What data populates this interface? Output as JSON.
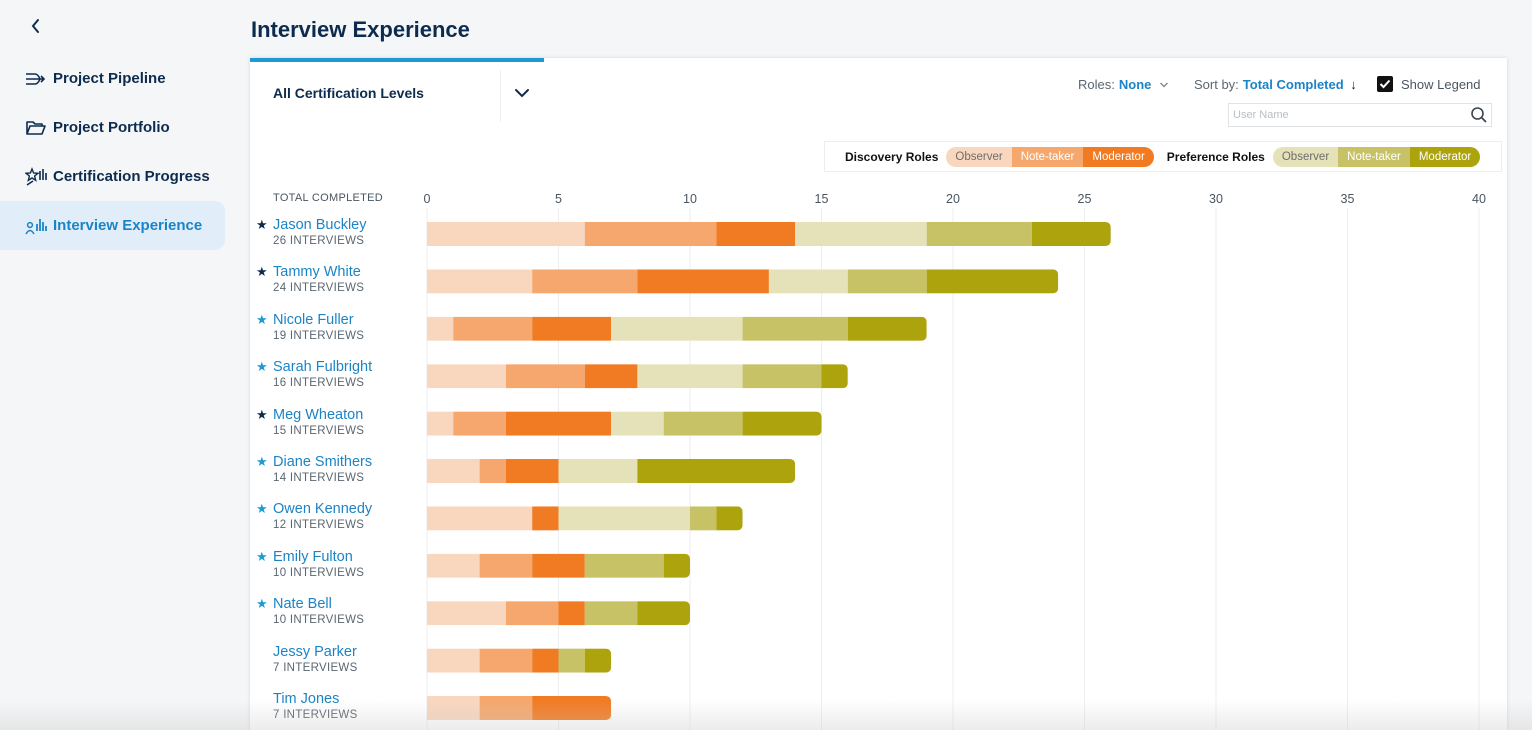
{
  "sidebar": {
    "items": [
      {
        "label": "Project Pipeline",
        "icon": "pipeline-icon",
        "active": false
      },
      {
        "label": "Project Portfolio",
        "icon": "folder-icon",
        "active": false
      },
      {
        "label": "Certification Progress",
        "icon": "certification-icon",
        "active": false
      },
      {
        "label": "Interview Experience",
        "icon": "bar-chart-user-icon",
        "active": true
      }
    ]
  },
  "header": {
    "title": "Interview Experience"
  },
  "filters": {
    "level": "All Certification Levels",
    "roles_label": "Roles:",
    "roles_value": "None",
    "sort_label": "Sort by:",
    "sort_value": "Total Completed",
    "sort_arrow": "↓",
    "show_legend_label": "Show Legend",
    "show_legend_checked": true,
    "search_placeholder": "User Name"
  },
  "legend": {
    "discovery_label": "Discovery Roles",
    "preference_label": "Preference Roles",
    "discovery": [
      {
        "label": "Observer",
        "color": "#f9d7bf",
        "text": "#6d6d6d"
      },
      {
        "label": "Note-taker",
        "color": "#f5a76d",
        "text": "#ffffff"
      },
      {
        "label": "Moderator",
        "color": "#f17b23",
        "text": "#ffffff"
      }
    ],
    "preference": [
      {
        "label": "Observer",
        "color": "#e5e2b9",
        "text": "#6d6d6d"
      },
      {
        "label": "Note-taker",
        "color": "#c8c266",
        "text": "#ffffff"
      },
      {
        "label": "Moderator",
        "color": "#aca30d",
        "text": "#ffffff"
      }
    ]
  },
  "chart_data": {
    "type": "bar",
    "orientation": "horizontal",
    "stacked": true,
    "xlabel": "TOTAL COMPLETED",
    "xlim": [
      0,
      40
    ],
    "xticks": [
      0,
      5,
      10,
      15,
      20,
      25,
      30,
      35,
      40
    ],
    "grid": true,
    "series": [
      {
        "name": "Discovery Observer",
        "color": "#f9d7bf"
      },
      {
        "name": "Discovery Note-taker",
        "color": "#f5a76d"
      },
      {
        "name": "Discovery Moderator",
        "color": "#f17b23"
      },
      {
        "name": "Preference Observer",
        "color": "#e5e2b9"
      },
      {
        "name": "Preference Note-taker",
        "color": "#c8c266"
      },
      {
        "name": "Preference Moderator",
        "color": "#aca30d"
      }
    ],
    "rows": [
      {
        "name": "Jason Buckley",
        "count_label": "26 INTERVIEWS",
        "star": "dark",
        "values": [
          6,
          5,
          3,
          5,
          4,
          3
        ]
      },
      {
        "name": "Tammy White",
        "count_label": "24 INTERVIEWS",
        "star": "dark",
        "values": [
          4,
          4,
          5,
          3,
          3,
          5
        ]
      },
      {
        "name": "Nicole Fuller",
        "count_label": "19 INTERVIEWS",
        "star": "blue",
        "values": [
          1,
          3,
          3,
          5,
          4,
          3
        ]
      },
      {
        "name": "Sarah Fulbright",
        "count_label": "16 INTERVIEWS",
        "star": "blue",
        "values": [
          3,
          3,
          2,
          4,
          3,
          1
        ]
      },
      {
        "name": "Meg Wheaton",
        "count_label": "15 INTERVIEWS",
        "star": "dark",
        "values": [
          1,
          2,
          4,
          2,
          3,
          3
        ]
      },
      {
        "name": "Diane Smithers",
        "count_label": "14 INTERVIEWS",
        "star": "blue",
        "values": [
          2,
          1,
          2,
          3,
          0,
          6
        ]
      },
      {
        "name": "Owen Kennedy",
        "count_label": "12 INTERVIEWS",
        "star": "blue",
        "values": [
          4,
          0,
          1,
          5,
          1,
          1
        ]
      },
      {
        "name": "Emily Fulton",
        "count_label": "10 INTERVIEWS",
        "star": "blue",
        "values": [
          2,
          2,
          2,
          0,
          3,
          1
        ]
      },
      {
        "name": "Nate Bell",
        "count_label": "10 INTERVIEWS",
        "star": "blue",
        "values": [
          3,
          2,
          1,
          0,
          2,
          2
        ]
      },
      {
        "name": "Jessy Parker",
        "count_label": "7 INTERVIEWS",
        "star": "none",
        "values": [
          2,
          2,
          1,
          0,
          1,
          1
        ]
      },
      {
        "name": "Tim Jones",
        "count_label": "7 INTERVIEWS",
        "star": "none",
        "values": [
          2,
          2,
          3,
          0,
          0,
          0
        ]
      }
    ]
  }
}
